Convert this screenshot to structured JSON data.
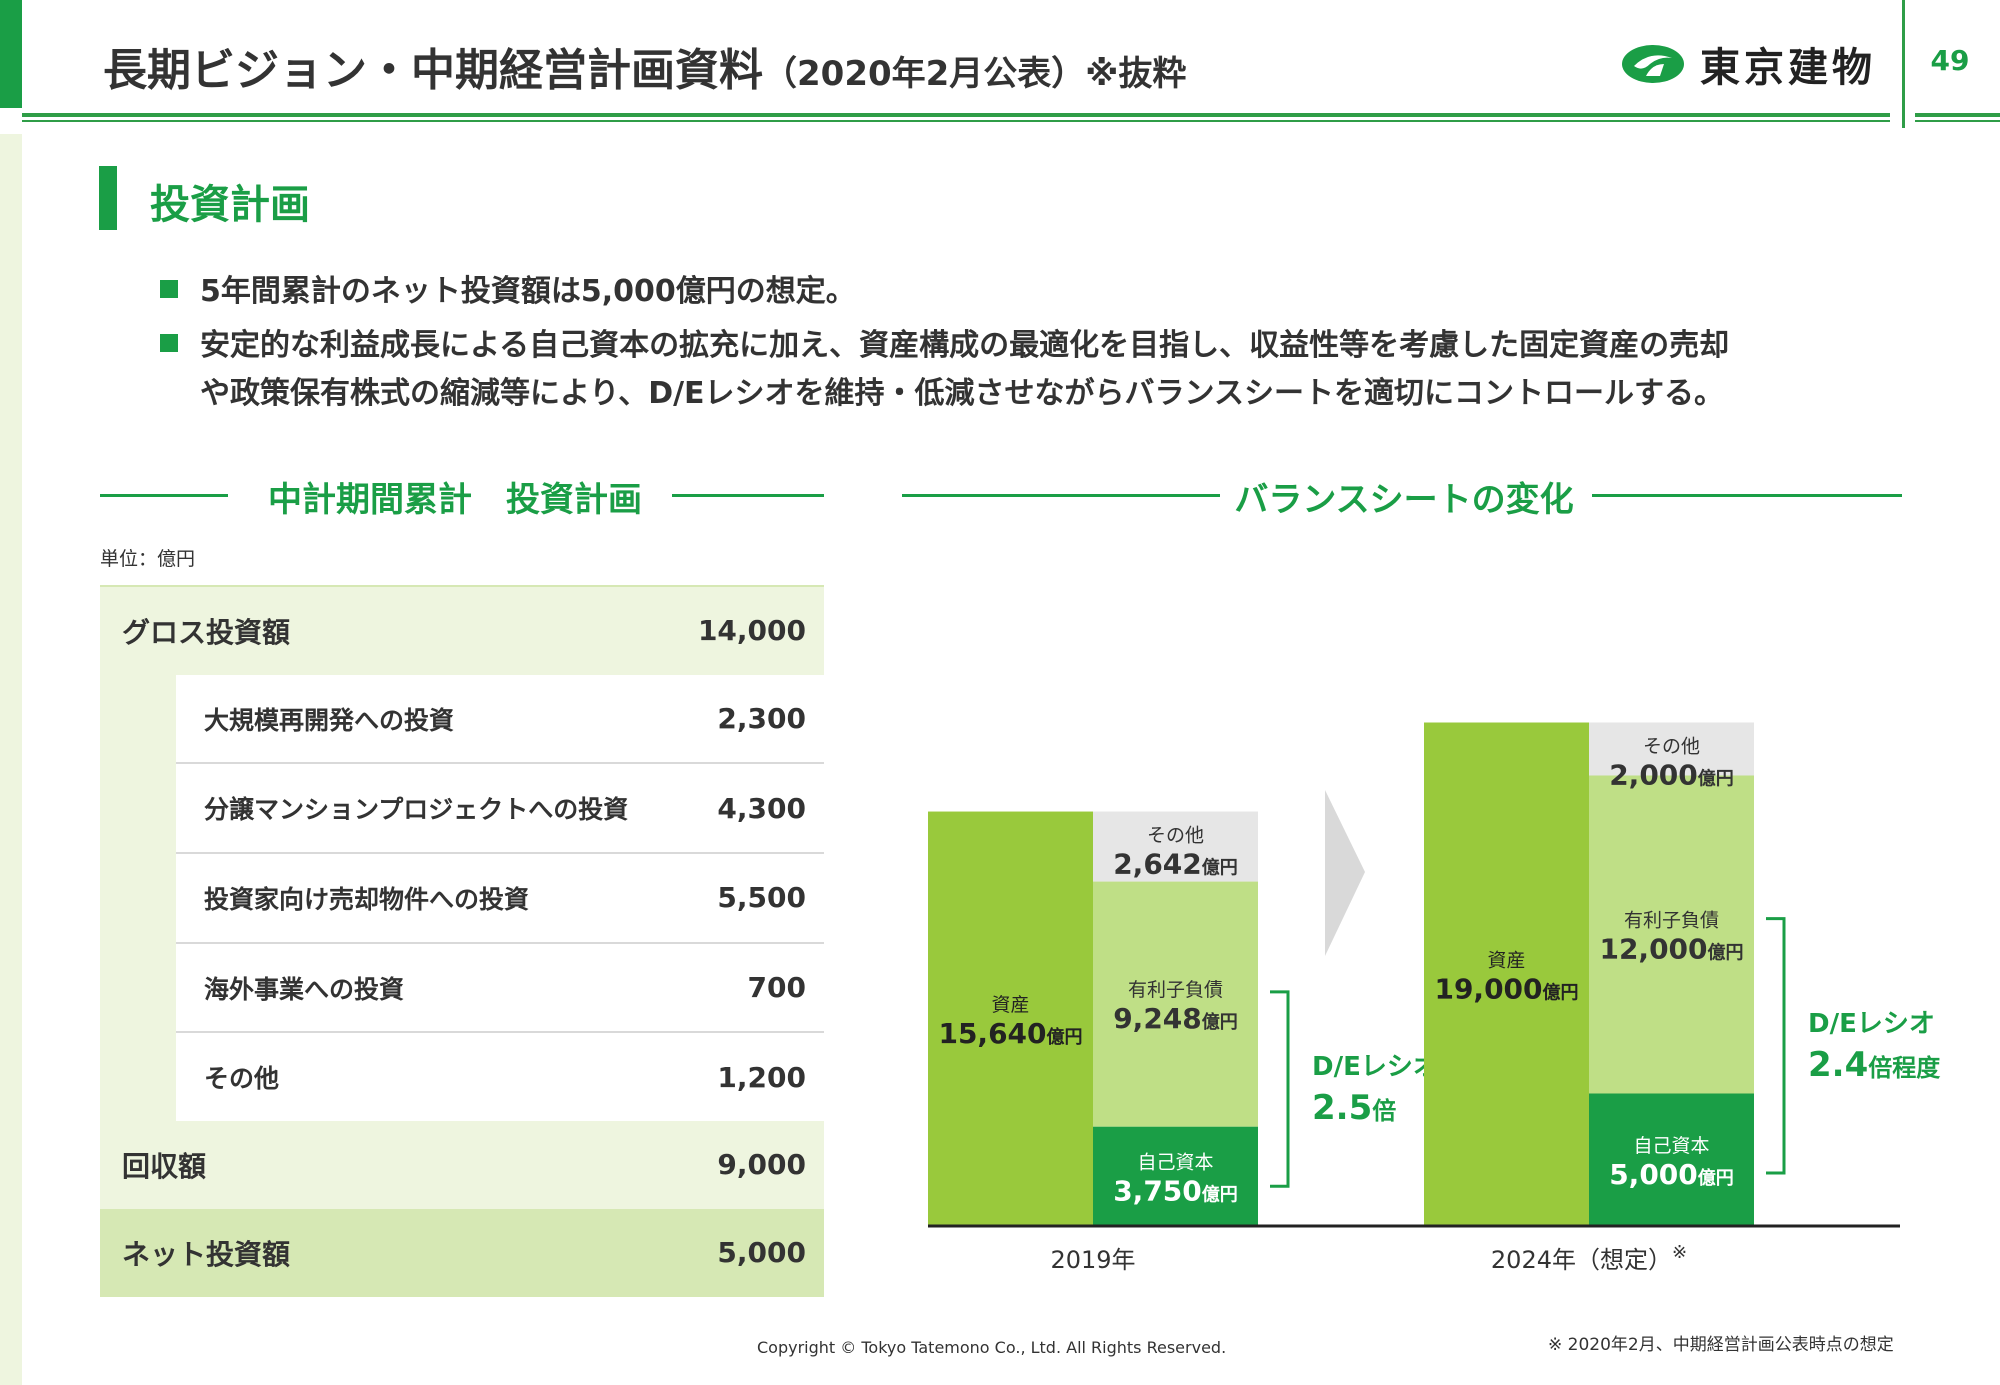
{
  "header": {
    "title": "長期ビジョン・中期経営計画資料",
    "title_sub": "（2020年2月公表）※抜粋",
    "company": "東京建物",
    "page_number": "49",
    "brand_color": "#1a9e46"
  },
  "section": {
    "title": "投資計画"
  },
  "bullets": [
    "5年間累計のネット投資額は5,000億円の想定。",
    "安定的な利益成長による自己資本の拡充に加え、資産構成の最適化を目指し、収益性等を考慮した固定資産の売却",
    "や政策保有株式の縮減等により、D/Eレシオを維持・低減させながらバランスシートを適切にコントロールする。"
  ],
  "investment": {
    "heading": "中計期間累計　投資計画",
    "unit": "単位：億円",
    "gross": {
      "label": "グロス投資額",
      "value": "14,000"
    },
    "items": [
      {
        "label": "大規模再開発への投資",
        "value": "2,300"
      },
      {
        "label": "分譲マンションプロジェクトへの投資",
        "value": "4,300"
      },
      {
        "label": "投資家向け売却物件への投資",
        "value": "5,500"
      },
      {
        "label": "海外事業への投資",
        "value": "700"
      },
      {
        "label": "その他",
        "value": "1,200"
      }
    ],
    "recovery": {
      "label": "回収額",
      "value": "9,000"
    },
    "net": {
      "label": "ネット投資額",
      "value": "5,000"
    }
  },
  "chart_data": {
    "type": "bar",
    "heading": "バランスシートの変化",
    "unit_label": "億円",
    "categories": [
      "2019年",
      "2024年（想定）"
    ],
    "category_note": "※",
    "asset_label": "資産",
    "assets": [
      15640,
      19000
    ],
    "series": [
      {
        "name": "自己資本",
        "values": [
          3750,
          5000
        ],
        "color": "#1a9e46"
      },
      {
        "name": "有利子負債",
        "values": [
          9248,
          12000
        ],
        "color": "#bfdf86"
      },
      {
        "name": "その他",
        "values": [
          2642,
          2000
        ],
        "color": "#e6e6e6"
      }
    ],
    "de_ratio": [
      {
        "label": "D/Eレシオ",
        "value": "2.5",
        "suffix": "倍"
      },
      {
        "label": "D/Eレシオ",
        "value": "2.4",
        "suffix": "倍程度"
      }
    ],
    "colors": {
      "asset": "#99c93c",
      "accent": "#1a9e46",
      "arrow": "#d9d9d9"
    }
  },
  "footer": {
    "copyright": "Copyright © Tokyo Tatemono Co., Ltd. All Rights Reserved.",
    "note": "※ 2020年2月、中期経営計画公表時点の想定"
  }
}
